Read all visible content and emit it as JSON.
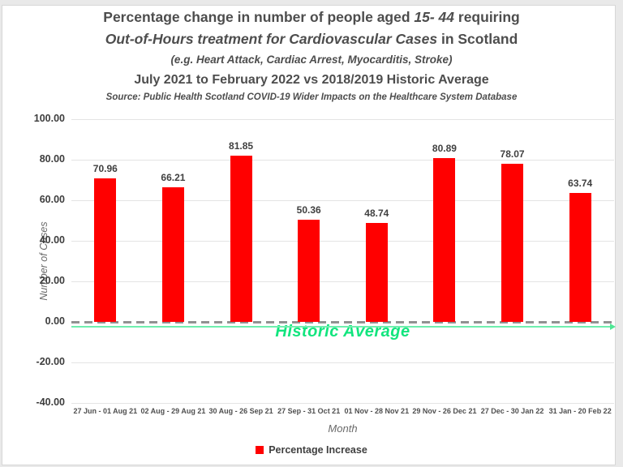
{
  "title": {
    "line1_prefix": "Percentage change in number of people aged ",
    "line1_italic": "15- 44",
    "line1_suffix": " requiring",
    "line2_italic": "Out-of-Hours treatment for Cardiovascular Cases",
    "line2_suffix": " in Scotland",
    "line3": "(e.g. Heart Attack, Cardiac Arrest, Myocarditis, Stroke)",
    "line4": "July 2021 to February 2022 vs 2018/2019 Historic Average",
    "source": "Source: Public Health Scotland COVID-19 Wider Impacts on the Healthcare System Database"
  },
  "chart_data": {
    "type": "bar",
    "categories": [
      "27 Jun - 01 Aug 21",
      "02 Aug - 29 Aug 21",
      "30 Aug - 26 Sep 21",
      "27 Sep - 31 Oct 21",
      "01 Nov - 28 Nov 21",
      "29 Nov - 26 Dec 21",
      "27 Dec - 30 Jan 22",
      "31 Jan - 20 Feb 22"
    ],
    "values": [
      70.96,
      66.21,
      81.85,
      50.36,
      48.74,
      80.89,
      78.07,
      63.74
    ],
    "value_labels": [
      "70.96",
      "66.21",
      "81.85",
      "50.36",
      "48.74",
      "80.89",
      "78.07",
      "63.74"
    ],
    "xlabel": "Month",
    "ylabel": "Number of Cases",
    "ylim": [
      -40,
      100
    ],
    "ytick_values": [
      100,
      80,
      60,
      40,
      20,
      0,
      -20,
      -40
    ],
    "ytick_labels": [
      "100.00",
      "80.00",
      "60.00",
      "40.00",
      "20.00",
      "0.00",
      "-20.00",
      "-40.00"
    ],
    "grid": true,
    "legend_position": "bottom",
    "annotation": "Historic Average",
    "zero_line_style": "dashed",
    "colors": {
      "bar": "#ff0000",
      "annotation_text": "#12e57e",
      "average_line": "#6fefae",
      "zero_dash": "#919191",
      "gridline": "#e4e4e4"
    }
  },
  "legend": {
    "label": "Percentage Increase",
    "swatch_color": "#ff0000"
  }
}
